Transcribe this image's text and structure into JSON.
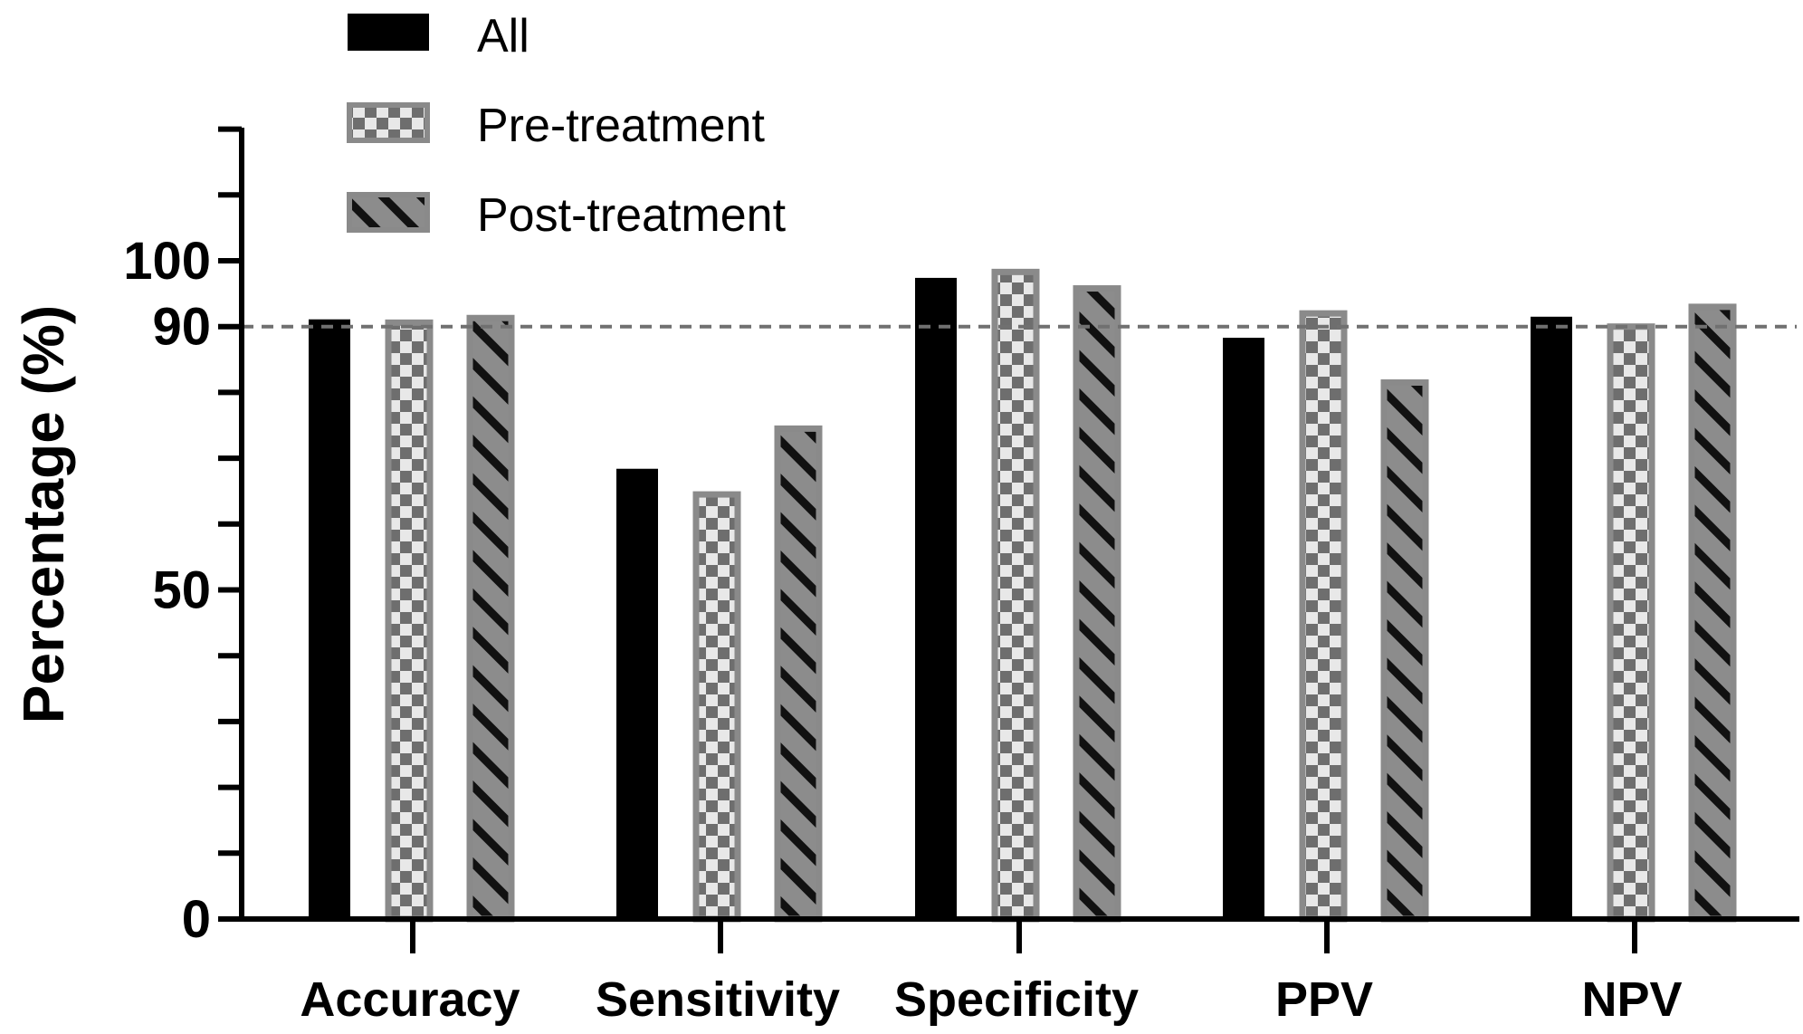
{
  "chart_data": {
    "type": "bar",
    "categories": [
      "Accuracy",
      "Sensitivity",
      "Specificity",
      "PPV",
      "NPV"
    ],
    "series": [
      {
        "name": "All",
        "values": [
          91.1,
          68.4,
          97.4,
          88.3,
          91.5
        ],
        "fill": "#000000",
        "pattern": "solid"
      },
      {
        "name": "Pre-treatment",
        "values": [
          90.6,
          64.5,
          98.3,
          92.0,
          90.0
        ],
        "fill": "#7f7f7f",
        "pattern": "checkerboard"
      },
      {
        "name": "Post-treatment",
        "values": [
          91.3,
          74.5,
          95.8,
          81.5,
          93.0
        ],
        "fill": "#7f7f7f",
        "pattern": "diagonal-stripes"
      }
    ],
    "title": "",
    "xlabel": "",
    "ylabel": "Percentage (%)",
    "ylim": [
      0,
      120
    ],
    "yticks_labeled": [
      0,
      50,
      90,
      100
    ],
    "ytick_labels": [
      "0",
      "50",
      "90",
      "100"
    ],
    "yticks_minor": [
      10,
      20,
      30,
      40,
      60,
      70,
      80,
      110,
      120
    ],
    "reference_line": {
      "value": 90,
      "style": "dashed",
      "color": "#707070"
    },
    "legend": {
      "position": "top-left",
      "entries": [
        "All",
        "Pre-treatment",
        "Post-treatment"
      ]
    },
    "grid": false
  }
}
